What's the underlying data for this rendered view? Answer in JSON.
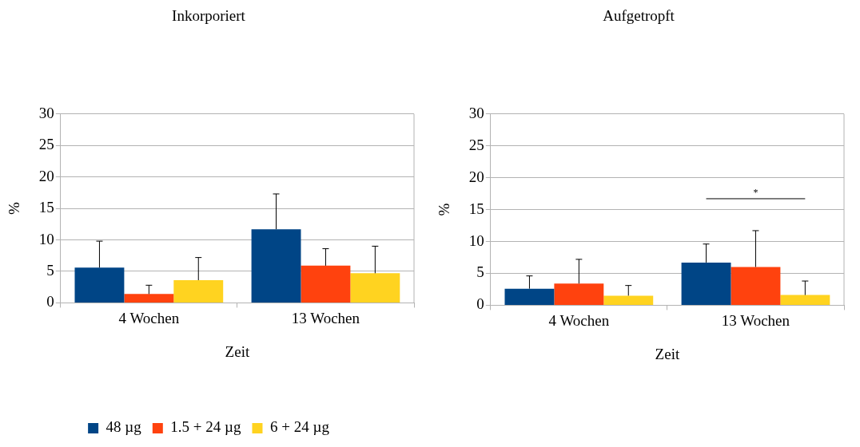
{
  "chart_data": [
    {
      "type": "bar",
      "title": "Inkorporiert",
      "xlabel": "Zeit",
      "ylabel": "%",
      "categories": [
        "4 Wochen",
        "13 Wochen"
      ],
      "series": [
        {
          "name": "48 µg",
          "color": "#004586",
          "values": [
            5.6,
            11.7
          ],
          "errors": [
            [
              5.6,
              9.8
            ],
            [
              11.7,
              17.3
            ]
          ]
        },
        {
          "name": "1.5 + 24 µg",
          "color": "#ff420e",
          "values": [
            1.4,
            5.9
          ],
          "errors": [
            [
              1.4,
              2.8
            ],
            [
              5.9,
              8.6
            ]
          ]
        },
        {
          "name": "6 + 24 µg",
          "color": "#ffd320",
          "values": [
            3.6,
            4.7
          ],
          "errors": [
            [
              3.6,
              7.2
            ],
            [
              4.7,
              9.0
            ]
          ]
        }
      ],
      "ylim": [
        0,
        30
      ],
      "yticks": [
        0,
        5,
        10,
        15,
        20,
        25,
        30
      ],
      "grid": "y",
      "legend": "bottom"
    },
    {
      "type": "bar",
      "title": "Aufgetropft",
      "xlabel": "Zeit",
      "ylabel": "%",
      "categories": [
        "4 Wochen",
        "13 Wochen"
      ],
      "series": [
        {
          "color": "#004586",
          "values": [
            2.6,
            6.7
          ],
          "errors": [
            [
              2.6,
              4.6
            ],
            [
              6.7,
              9.6
            ]
          ]
        },
        {
          "color": "#ff420e",
          "values": [
            3.4,
            6.0
          ],
          "errors": [
            [
              3.4,
              7.2
            ],
            [
              6.0,
              11.7
            ]
          ]
        },
        {
          "color": "#ffd320",
          "values": [
            1.5,
            1.6
          ],
          "errors": [
            [
              1.5,
              3.1
            ],
            [
              1.6,
              3.8
            ]
          ]
        }
      ],
      "ylim": [
        0,
        30
      ],
      "yticks": [
        0,
        5,
        10,
        15,
        20,
        25,
        30
      ],
      "grid": "y",
      "annotations": [
        "*"
      ]
    }
  ]
}
